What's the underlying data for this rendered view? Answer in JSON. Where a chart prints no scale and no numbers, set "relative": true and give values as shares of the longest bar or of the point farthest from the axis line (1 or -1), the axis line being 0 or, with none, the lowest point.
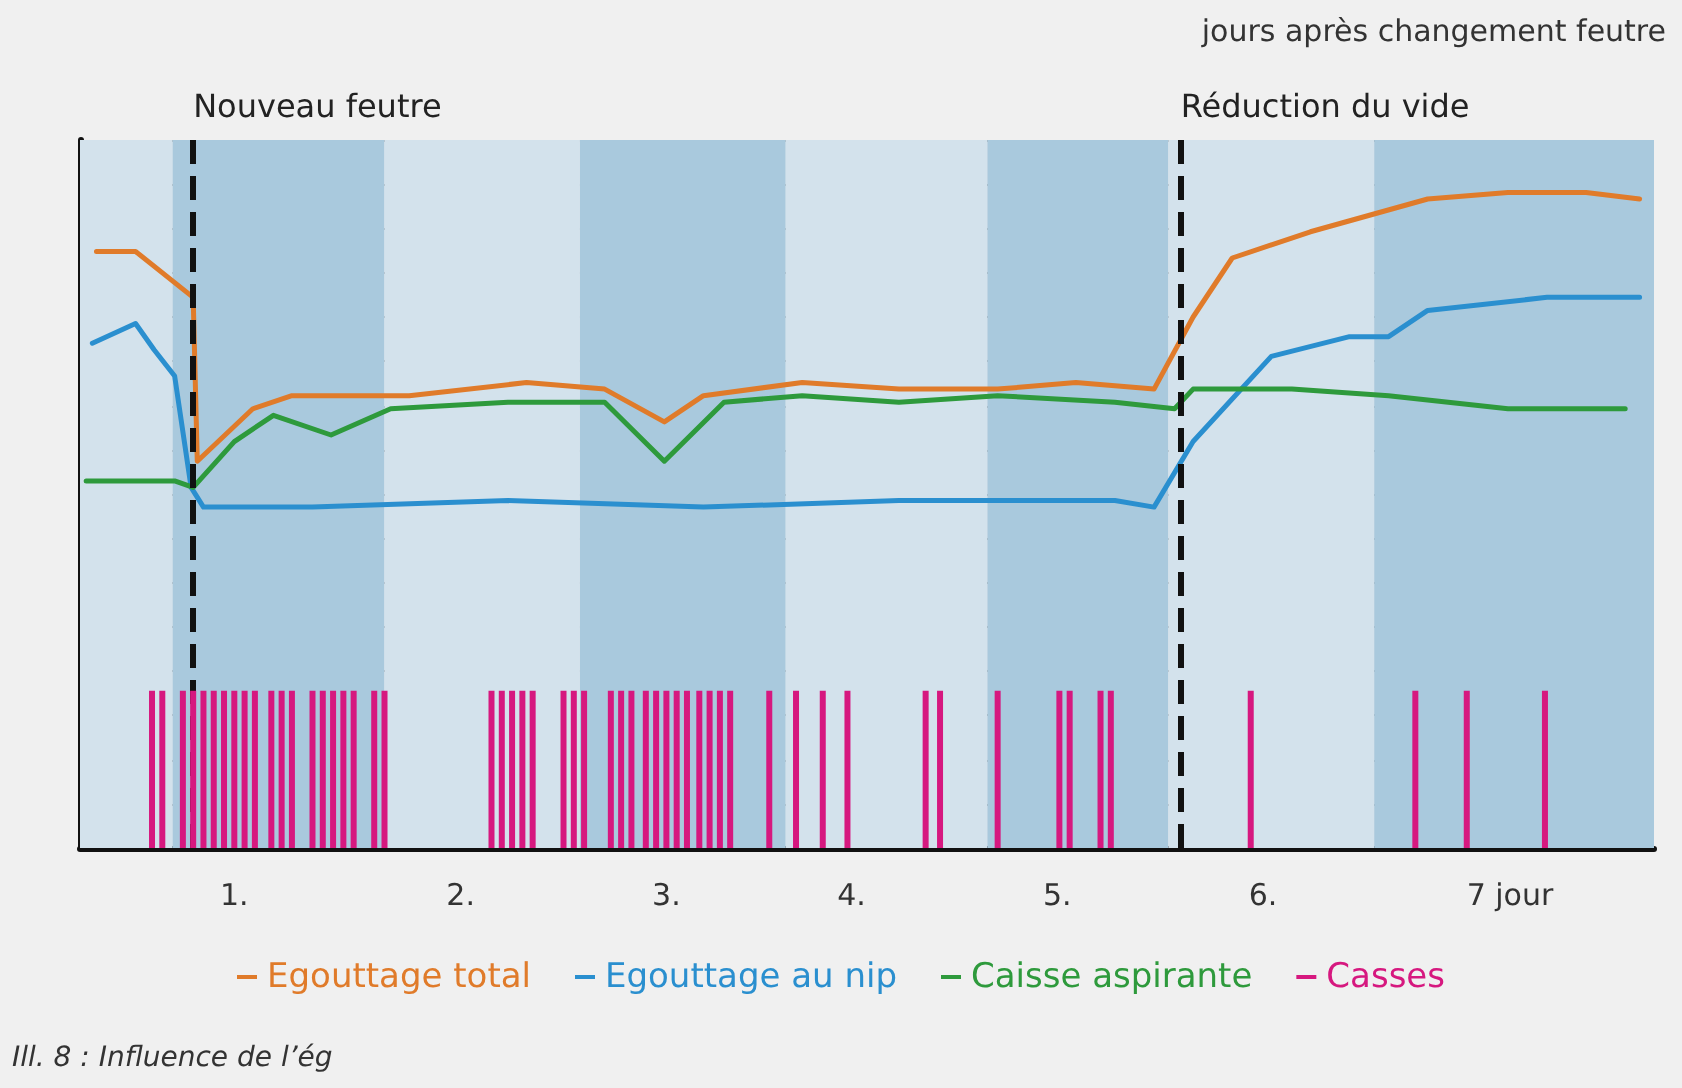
{
  "chart_data": {
    "type": "line",
    "relative": true,
    "grid": "y",
    "legend": "bottom",
    "marker": "none",
    "line_style": "solid",
    "xlim": [
      0.35,
      8
    ],
    "xticks": [
      {
        "value": 1.1,
        "label": "1."
      },
      {
        "value": 2.2,
        "label": "2."
      },
      {
        "value": 3.2,
        "label": "3."
      },
      {
        "value": 4.1,
        "label": "4."
      },
      {
        "value": 5.1,
        "label": "5."
      },
      {
        "value": 6.1,
        "label": "6."
      },
      {
        "value": 7.3,
        "label": "7 jour"
      }
    ],
    "series": [
      {
        "name": "Egouttage total",
        "color": "#e07b2a",
        "x": [
          0.43,
          0.62,
          0.9,
          0.92,
          1.19,
          1.38,
          1.95,
          2.52,
          2.9,
          3.19,
          3.38,
          3.86,
          4.33,
          4.81,
          5.19,
          5.57,
          5.76,
          5.95,
          6.33,
          6.9,
          7.29,
          7.67,
          7.93
        ],
        "values": [
          0.91,
          0.91,
          0.84,
          0.59,
          0.67,
          0.69,
          0.69,
          0.71,
          0.7,
          0.65,
          0.69,
          0.71,
          0.7,
          0.7,
          0.71,
          0.7,
          0.81,
          0.9,
          0.94,
          0.99,
          1.0,
          1.0,
          0.99
        ]
      },
      {
        "name": "Egouttage au nip",
        "color": "#2a8fcf",
        "x": [
          0.41,
          0.62,
          0.71,
          0.81,
          0.89,
          0.95,
          1.48,
          2.43,
          3.38,
          4.33,
          5.0,
          5.38,
          5.57,
          5.76,
          6.14,
          6.52,
          6.71,
          6.9,
          7.48,
          7.93
        ],
        "values": [
          0.77,
          0.8,
          0.76,
          0.72,
          0.55,
          0.52,
          0.52,
          0.53,
          0.52,
          0.53,
          0.53,
          0.53,
          0.52,
          0.62,
          0.75,
          0.78,
          0.78,
          0.82,
          0.84,
          0.84
        ]
      },
      {
        "name": "Caisse aspirante",
        "color": "#2e9a3c",
        "x": [
          0.38,
          0.81,
          0.9,
          1.1,
          1.29,
          1.57,
          1.86,
          2.43,
          2.9,
          3.19,
          3.48,
          3.86,
          4.33,
          4.81,
          5.38,
          5.67,
          5.76,
          6.24,
          6.71,
          7.29,
          7.86
        ],
        "values": [
          0.56,
          0.56,
          0.55,
          0.62,
          0.66,
          0.63,
          0.67,
          0.68,
          0.68,
          0.59,
          0.68,
          0.69,
          0.68,
          0.69,
          0.68,
          0.67,
          0.7,
          0.7,
          0.69,
          0.67,
          0.67
        ]
      },
      {
        "name": "Casses",
        "type": "bar",
        "color": "#d6187f",
        "x": [
          0.7,
          0.75,
          0.85,
          0.9,
          0.95,
          1.0,
          1.05,
          1.1,
          1.15,
          1.2,
          1.28,
          1.33,
          1.38,
          1.48,
          1.53,
          1.58,
          1.63,
          1.68,
          1.78,
          1.83,
          2.35,
          2.4,
          2.45,
          2.5,
          2.55,
          2.7,
          2.75,
          2.8,
          2.93,
          2.98,
          3.03,
          3.1,
          3.15,
          3.2,
          3.25,
          3.3,
          3.36,
          3.41,
          3.46,
          3.51,
          3.7,
          3.83,
          3.96,
          4.08,
          4.46,
          4.53,
          4.81,
          5.11,
          5.16,
          5.31,
          5.36,
          6.04,
          6.84,
          7.09,
          7.47
        ],
        "values": [
          0.24,
          0.24,
          0.24,
          0.24,
          0.24,
          0.24,
          0.24,
          0.24,
          0.24,
          0.24,
          0.24,
          0.24,
          0.24,
          0.24,
          0.24,
          0.24,
          0.24,
          0.24,
          0.24,
          0.24,
          0.24,
          0.24,
          0.24,
          0.24,
          0.24,
          0.24,
          0.24,
          0.24,
          0.24,
          0.24,
          0.24,
          0.24,
          0.24,
          0.24,
          0.24,
          0.24,
          0.24,
          0.24,
          0.24,
          0.24,
          0.24,
          0.24,
          0.24,
          0.24,
          0.24,
          0.24,
          0.24,
          0.24,
          0.24,
          0.24,
          0.24,
          0.24,
          0.24,
          0.24,
          0.24
        ]
      }
    ],
    "ref_lines": [
      {
        "axis": "x",
        "value": 0.9,
        "label": "Nouveau feutre",
        "color": "#111111",
        "line_style": "dashed"
      },
      {
        "axis": "x",
        "value": 5.7,
        "label": "Réduction du vide",
        "color": "#111111",
        "line_style": "dashed"
      }
    ],
    "bands": [
      {
        "axis": "x",
        "from": 0.35,
        "to": 0.8,
        "color": "#d3e2ec"
      },
      {
        "axis": "x",
        "from": 0.8,
        "to": 1.83,
        "color": "#a9c9dd"
      },
      {
        "axis": "x",
        "from": 1.83,
        "to": 2.78,
        "color": "#d3e2ec"
      },
      {
        "axis": "x",
        "from": 2.78,
        "to": 3.78,
        "color": "#a9c9dd"
      },
      {
        "axis": "x",
        "from": 3.78,
        "to": 4.76,
        "color": "#d3e2ec"
      },
      {
        "axis": "x",
        "from": 4.76,
        "to": 5.64,
        "color": "#a9c9dd"
      },
      {
        "axis": "x",
        "from": 5.64,
        "to": 6.64,
        "color": "#d3e2ec"
      },
      {
        "axis": "x",
        "from": 6.64,
        "to": 8,
        "color": "#a9c9dd"
      }
    ],
    "annotations": [
      "jours après changement feutre",
      "Ill. 8 : Influence de l’ég"
    ]
  }
}
